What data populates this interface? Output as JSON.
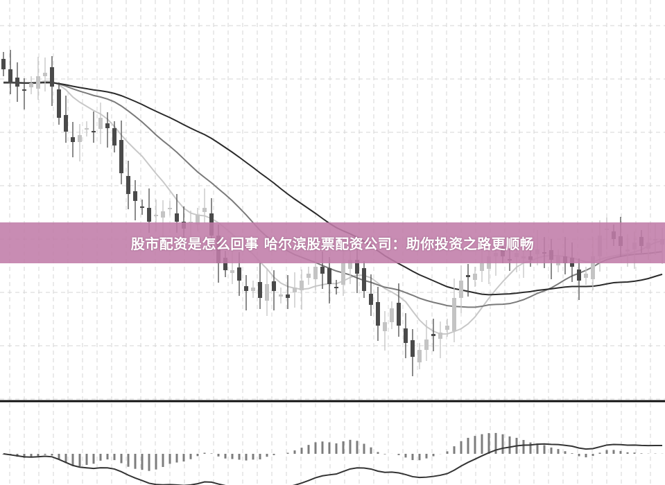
{
  "banner": {
    "title": "股市配资是怎么回事 哈尔滨股票配资公司：助你投资之路更顺畅"
  },
  "colors": {
    "up": "#c4c4c4",
    "down": "#4a4a4a",
    "ma_short": "#c8c8c8",
    "ma_mid": "#7a7a7a",
    "ma_long": "#2a2a2a",
    "macd_bar": "#7d7d7d",
    "banner": "#c07ca8"
  },
  "chart_data": {
    "type": "candlestick",
    "title": "",
    "grid": true,
    "ylim": [
      0,
      60
    ],
    "close": [
      50,
      48,
      47.5,
      47,
      48,
      49,
      49.5,
      47.5,
      43,
      41,
      39.5,
      40.5,
      41.5,
      41,
      43,
      41.5,
      39,
      35,
      32,
      31,
      30,
      28,
      29,
      29.5,
      30,
      28,
      27,
      28,
      29,
      30,
      26,
      22,
      21,
      21,
      19.5,
      18,
      18.5,
      17,
      19,
      18,
      17.5,
      17,
      18.5,
      19.5,
      20.5,
      21.5,
      20.5,
      19,
      18.5,
      22,
      22.5,
      20.5,
      18,
      16,
      13,
      13.5,
      15.5,
      13,
      10.5,
      8.5,
      9.5,
      11,
      11.5,
      12,
      13,
      17,
      19.5,
      20,
      20.5,
      22,
      23,
      23.5,
      23,
      22.5,
      23.5,
      23,
      22.5,
      24,
      23.5,
      22.5,
      23,
      22,
      21.5,
      19.5,
      20.5,
      23,
      26,
      27,
      25.5,
      24.5,
      24,
      25,
      24.5,
      25,
      25.5,
      25.5
    ],
    "moving_averages": [
      "short",
      "mid",
      "long"
    ],
    "indicator": "MACD"
  }
}
